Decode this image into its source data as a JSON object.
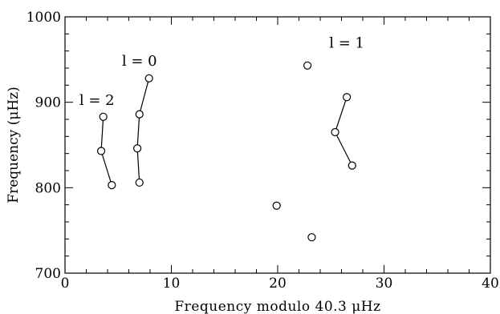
{
  "chart_data": {
    "type": "scatter",
    "title": "",
    "xlabel": "Frequency modulo 40.3 μHz",
    "ylabel": "Frequency (μHz)",
    "xlim": [
      0,
      40
    ],
    "ylim": [
      700,
      1000
    ],
    "xticks": [
      0,
      10,
      20,
      30,
      40
    ],
    "yticks": [
      700,
      800,
      900,
      1000
    ],
    "grid": false,
    "series": [
      {
        "name": "l = 2",
        "connected": true,
        "points": [
          [
            3.6,
            883
          ],
          [
            3.4,
            843
          ],
          [
            4.4,
            803
          ]
        ]
      },
      {
        "name": "l = 0",
        "connected": true,
        "points": [
          [
            7.9,
            928
          ],
          [
            7.0,
            886
          ],
          [
            6.8,
            846
          ],
          [
            7.0,
            806
          ]
        ]
      },
      {
        "name": "l = 1",
        "connected": true,
        "points": [
          [
            26.5,
            906
          ],
          [
            25.4,
            865
          ],
          [
            27.0,
            826
          ]
        ]
      },
      {
        "name": "",
        "connected": false,
        "points": [
          [
            22.8,
            943
          ],
          [
            19.9,
            779
          ],
          [
            23.2,
            742
          ]
        ]
      }
    ],
    "annotations": [
      {
        "text": "l = 2",
        "x": 3.0,
        "y": 897
      },
      {
        "text": "l = 0",
        "x": 7.0,
        "y": 943
      },
      {
        "text": "l = 1",
        "x": 26.5,
        "y": 964
      }
    ]
  }
}
